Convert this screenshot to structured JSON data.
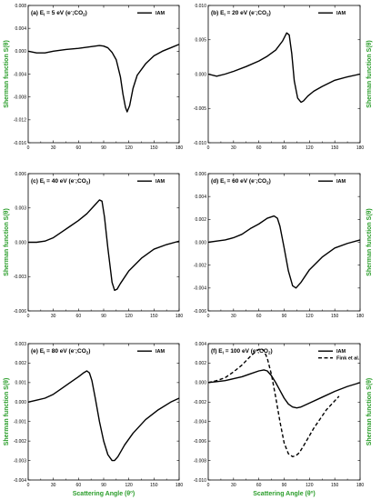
{
  "chart_data": [
    {
      "type": "line",
      "title": "(a) E",
      "title_sub": "i",
      "title_rest": " = 5 eV (e",
      "title_sup": "-",
      "title_end": ";CO",
      "title_sub2": "2",
      "title_close": ")",
      "xlim": [
        0,
        180
      ],
      "ylim": [
        -0.016,
        0.008
      ],
      "xticks": [
        0,
        30,
        60,
        90,
        120,
        150,
        180
      ],
      "xtick_labels": [
        "0",
        "30",
        "60",
        "90",
        "120",
        "150",
        "180"
      ],
      "yticks": [
        -0.016,
        -0.012,
        -0.008,
        -0.004,
        0,
        0.004,
        0.008
      ],
      "ytick_labels": [
        "-0.016",
        "-0.012",
        "-0.008",
        "-0.004",
        "0.000",
        "0.004",
        "0.008"
      ],
      "legend": "top-right",
      "series": [
        {
          "name": "IAM",
          "style": "solid",
          "x": [
            0,
            10,
            20,
            30,
            45,
            60,
            75,
            85,
            90,
            95,
            100,
            105,
            110,
            113,
            116,
            118,
            121,
            125,
            130,
            140,
            150,
            160,
            170,
            180
          ],
          "y": [
            0,
            -0.0003,
            -0.0003,
            0,
            0.0003,
            0.0005,
            0.0008,
            0.001,
            0.0009,
            0.0006,
            -0.0002,
            -0.0015,
            -0.0045,
            -0.0075,
            -0.0098,
            -0.0106,
            -0.0095,
            -0.0065,
            -0.0042,
            -0.0022,
            -0.0008,
            0,
            0.0006,
            0.0012
          ]
        }
      ]
    },
    {
      "type": "line",
      "title": "(b) E",
      "title_sub": "i",
      "title_rest": " = 20 eV (e",
      "title_sup": "-",
      "title_end": ";CO",
      "title_sub2": "2",
      "title_close": ")",
      "xlim": [
        0,
        180
      ],
      "ylim": [
        -0.01,
        0.01
      ],
      "xticks": [
        0,
        30,
        60,
        90,
        120,
        150,
        180
      ],
      "xtick_labels": [
        "0",
        "30",
        "60",
        "90",
        "120",
        "150",
        "180"
      ],
      "yticks": [
        -0.01,
        -0.005,
        0,
        0.005,
        0.01
      ],
      "ytick_labels": [
        "-0.010",
        "-0.005",
        "0.000",
        "0.005",
        "0.010"
      ],
      "legend": "top-right",
      "series": [
        {
          "name": "IAM",
          "style": "solid",
          "x": [
            0,
            10,
            20,
            30,
            45,
            60,
            70,
            80,
            88,
            93,
            96,
            99,
            102,
            106,
            110,
            113,
            118,
            125,
            135,
            150,
            165,
            180
          ],
          "y": [
            0,
            -0.0003,
            0,
            0.0004,
            0.0011,
            0.0019,
            0.0026,
            0.0035,
            0.0048,
            0.006,
            0.0057,
            0.003,
            -0.001,
            -0.0035,
            -0.0041,
            -0.0039,
            -0.0032,
            -0.0025,
            -0.0018,
            -0.0009,
            -0.0004,
            0
          ]
        }
      ]
    },
    {
      "type": "line",
      "title": "(c) E",
      "title_sub": "i",
      "title_rest": " = 40 eV (e",
      "title_sup": "-",
      "title_end": ";CO",
      "title_sub2": "2",
      "title_close": ")",
      "xlim": [
        0,
        180
      ],
      "ylim": [
        -0.006,
        0.006
      ],
      "xticks": [
        0,
        30,
        60,
        90,
        120,
        150,
        180
      ],
      "xtick_labels": [
        "0",
        "30",
        "60",
        "90",
        "120",
        "150",
        "180"
      ],
      "yticks": [
        -0.006,
        -0.003,
        0,
        0.003,
        0.006
      ],
      "ytick_labels": [
        "-0.006",
        "-0.003",
        "0.000",
        "0.003",
        "0.006"
      ],
      "legend": "top-right",
      "series": [
        {
          "name": "IAM",
          "style": "solid",
          "x": [
            0,
            10,
            20,
            30,
            40,
            50,
            60,
            70,
            80,
            85,
            88,
            91,
            95,
            100,
            103,
            106,
            110,
            120,
            135,
            150,
            165,
            180
          ],
          "y": [
            0,
            0,
            0.0001,
            0.0004,
            0.0009,
            0.0014,
            0.0019,
            0.0025,
            0.0033,
            0.0037,
            0.0036,
            0.0022,
            -0.0005,
            -0.0035,
            -0.0042,
            -0.0041,
            -0.0036,
            -0.0025,
            -0.0014,
            -0.0006,
            -0.0002,
            0.0001
          ]
        }
      ]
    },
    {
      "type": "line",
      "title": "(d) E",
      "title_sub": "i",
      "title_rest": " = 60 eV (e",
      "title_sup": "-",
      "title_end": ";CO",
      "title_sub2": "2",
      "title_close": ")",
      "xlim": [
        0,
        180
      ],
      "ylim": [
        -0.006,
        0.006
      ],
      "xticks": [
        0,
        30,
        60,
        90,
        120,
        150,
        180
      ],
      "xtick_labels": [
        "0",
        "30",
        "60",
        "90",
        "120",
        "150",
        "180"
      ],
      "yticks": [
        -0.006,
        -0.004,
        -0.002,
        0,
        0.002,
        0.004,
        0.006
      ],
      "ytick_labels": [
        "-0.006",
        "-0.004",
        "-0.002",
        "0.000",
        "0.002",
        "0.004",
        "0.006"
      ],
      "legend": "top-right",
      "series": [
        {
          "name": "IAM",
          "style": "solid",
          "x": [
            0,
            10,
            20,
            30,
            40,
            50,
            60,
            70,
            78,
            82,
            85,
            90,
            95,
            100,
            104,
            110,
            120,
            135,
            150,
            165,
            180
          ],
          "y": [
            0,
            0.0001,
            0.0002,
            0.0004,
            0.0007,
            0.0012,
            0.0016,
            0.0021,
            0.0023,
            0.0021,
            0.0014,
            -0.0005,
            -0.0025,
            -0.0038,
            -0.004,
            -0.0035,
            -0.0024,
            -0.0013,
            -0.0005,
            -0.0001,
            0.0002
          ]
        }
      ]
    },
    {
      "type": "line",
      "title": "(e) E",
      "title_sub": "i",
      "title_rest": " = 80 eV (e",
      "title_sup": "-",
      "title_end": ";CO",
      "title_sub2": "2",
      "title_close": ")",
      "xlim": [
        0,
        180
      ],
      "ylim": [
        -0.004,
        0.003
      ],
      "xticks": [
        0,
        30,
        60,
        90,
        120,
        150,
        180
      ],
      "xtick_labels": [
        "0",
        "30",
        "60",
        "90",
        "120",
        "150",
        "180"
      ],
      "yticks": [
        -0.004,
        -0.003,
        -0.002,
        -0.001,
        0,
        0.001,
        0.002,
        0.003
      ],
      "ytick_labels": [
        "-0.004",
        "-0.003",
        "-0.002",
        "-0.001",
        "0.000",
        "0.001",
        "0.002",
        "0.003"
      ],
      "legend": "top-right",
      "series": [
        {
          "name": "IAM",
          "style": "solid",
          "x": [
            0,
            10,
            20,
            30,
            40,
            50,
            60,
            66,
            70,
            73,
            76,
            80,
            85,
            90,
            95,
            100,
            103,
            107,
            115,
            125,
            140,
            155,
            170,
            180
          ],
          "y": [
            0,
            0.0001,
            0.0002,
            0.0004,
            0.0007,
            0.001,
            0.0013,
            0.0015,
            0.0016,
            0.0015,
            0.0011,
            0.0002,
            -0.001,
            -0.002,
            -0.0027,
            -0.003,
            -0.003,
            -0.0028,
            -0.0022,
            -0.0016,
            -0.0009,
            -0.0004,
            0,
            0.0002
          ]
        }
      ]
    },
    {
      "type": "line",
      "title": "(f) E",
      "title_sub": "i",
      "title_rest": " = 100 eV (e",
      "title_sup": "-",
      "title_end": ";CO",
      "title_sub2": "2",
      "title_close": ")",
      "xlim": [
        0,
        180
      ],
      "ylim": [
        -0.01,
        0.004
      ],
      "xticks": [
        0,
        30,
        60,
        90,
        120,
        150,
        180
      ],
      "xtick_labels": [
        "0",
        "30",
        "60",
        "90",
        "120",
        "150",
        "180"
      ],
      "yticks": [
        -0.01,
        -0.008,
        -0.006,
        -0.004,
        -0.002,
        0,
        0.002,
        0.004
      ],
      "ytick_labels": [
        "-0.010",
        "-0.008",
        "-0.006",
        "-0.004",
        "-0.002",
        "0.000",
        "0.002",
        "0.004"
      ],
      "legend": "top-right",
      "series": [
        {
          "name": "IAM",
          "style": "solid",
          "x": [
            0,
            10,
            20,
            30,
            40,
            50,
            60,
            66,
            70,
            75,
            80,
            85,
            90,
            95,
            100,
            105,
            110,
            120,
            135,
            150,
            165,
            180
          ],
          "y": [
            0,
            0.0001,
            0.0002,
            0.0004,
            0.0006,
            0.0009,
            0.0012,
            0.0013,
            0.0012,
            0.0007,
            0,
            -0.0008,
            -0.0016,
            -0.0022,
            -0.0025,
            -0.0026,
            -0.0025,
            -0.0021,
            -0.0015,
            -0.0009,
            -0.0004,
            0
          ]
        },
        {
          "name": "Fink et al.",
          "style": "dashed",
          "x": [
            0,
            10,
            20,
            30,
            40,
            50,
            58,
            62,
            66,
            70,
            75,
            80,
            85,
            90,
            95,
            100,
            104,
            108,
            115,
            125,
            140,
            155
          ],
          "y": [
            0,
            0.0002,
            0.0005,
            0.0011,
            0.0018,
            0.0027,
            0.0033,
            0.0035,
            0.0033,
            0.0025,
            0.0008,
            -0.0015,
            -0.004,
            -0.0062,
            -0.0073,
            -0.0076,
            -0.0075,
            -0.0072,
            -0.0062,
            -0.0047,
            -0.0028,
            -0.0014
          ]
        }
      ]
    }
  ],
  "labels": {
    "ylabel": "Sherman function S(θ)",
    "xlabel": "Scattering Angle (θ",
    "xlabel_sup": "o",
    "xlabel_close": ")"
  }
}
